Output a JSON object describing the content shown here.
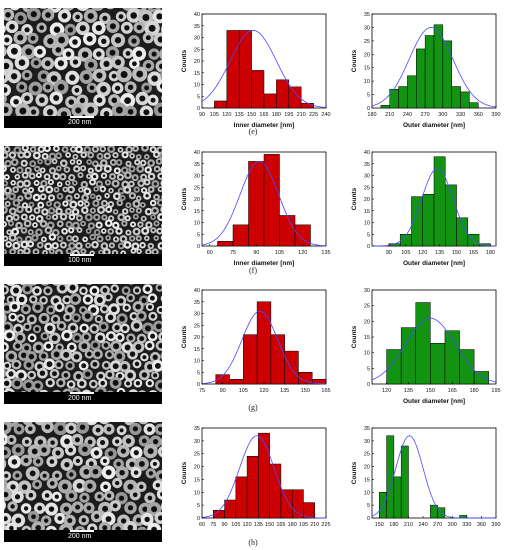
{
  "panels": [
    {
      "label": "(e)",
      "scale_text": "200 nm"
    },
    {
      "label": "(f)",
      "scale_text": "100 nm"
    },
    {
      "label": "(g)",
      "scale_text": "200 nm"
    },
    {
      "label": "(h)",
      "scale_text": "200 nm"
    }
  ],
  "colors": {
    "inner_bar": "#cc0000",
    "outer_bar": "#129312",
    "fit_curve": "#4b4bff",
    "sem_background": "#0e0e0e"
  },
  "chart_data": [
    {
      "type": "bar",
      "panel": "(e)",
      "xlabel": "Inner diameter [nm]",
      "ylabel": "Counts",
      "xlim": [
        90,
        240
      ],
      "ylim": [
        0,
        40
      ],
      "xticks": [
        90,
        105,
        120,
        135,
        150,
        165,
        180,
        195,
        210,
        225,
        240
      ],
      "yticks": [
        0,
        5,
        10,
        15,
        20,
        25,
        30,
        35,
        40
      ],
      "bin_edges": [
        105,
        120,
        135,
        150,
        165,
        180,
        195,
        210,
        225
      ],
      "values": [
        3,
        33,
        33,
        16,
        6,
        12,
        9,
        2
      ],
      "fit": {
        "mean": 152,
        "sd": 28,
        "peak": 33
      }
    },
    {
      "type": "bar",
      "panel": "(e)",
      "xlabel": "Outer diameter [nm]",
      "ylabel": "Counts",
      "xlim": [
        180,
        390
      ],
      "ylim": [
        0,
        35
      ],
      "xticks": [
        180,
        210,
        240,
        270,
        300,
        330,
        360,
        390
      ],
      "yticks": [
        0,
        5,
        10,
        15,
        20,
        25,
        30,
        35
      ],
      "bin_edges": [
        195,
        210,
        225,
        240,
        255,
        270,
        285,
        300,
        315,
        330,
        345,
        360
      ],
      "values": [
        1,
        7,
        8,
        12,
        22,
        27,
        31,
        25,
        8,
        6,
        2
      ],
      "fit": {
        "mean": 280,
        "sd": 37,
        "peak": 30
      }
    },
    {
      "type": "bar",
      "panel": "(f)",
      "xlabel": "Inner diameter [nm]",
      "ylabel": "Counts",
      "xlim": [
        55,
        135
      ],
      "ylim": [
        0,
        40
      ],
      "xticks": [
        60,
        75,
        90,
        105,
        120,
        135
      ],
      "yticks": [
        0,
        5,
        10,
        15,
        20,
        25,
        30,
        35,
        40
      ],
      "bin_edges": [
        65,
        75,
        85,
        95,
        105,
        115,
        125
      ],
      "values": [
        2,
        9,
        36,
        39,
        13,
        9
      ],
      "fit": {
        "mean": 92,
        "sd": 12.5,
        "peak": 36
      }
    },
    {
      "type": "bar",
      "panel": "(f)",
      "xlabel": "Outer diameter [nm]",
      "ylabel": "Counts",
      "xlim": [
        75,
        185
      ],
      "ylim": [
        0,
        40
      ],
      "xticks": [
        90,
        105,
        120,
        135,
        150,
        165,
        180
      ],
      "yticks": [
        0,
        5,
        10,
        15,
        20,
        25,
        30,
        35,
        40
      ],
      "bin_edges": [
        90,
        100,
        110,
        120,
        130,
        140,
        150,
        160,
        170,
        180
      ],
      "values": [
        1,
        5,
        21,
        22,
        38,
        26,
        12,
        5,
        1
      ],
      "fit": {
        "mean": 133,
        "sd": 14,
        "peak": 33
      }
    },
    {
      "type": "bar",
      "panel": "(g)",
      "xlabel": "",
      "ylabel": "Counts",
      "xlim": [
        75,
        165
      ],
      "ylim": [
        0,
        40
      ],
      "xticks": [
        75,
        90,
        105,
        120,
        135,
        150,
        165
      ],
      "yticks": [
        0,
        5,
        10,
        15,
        20,
        25,
        30,
        35,
        40
      ],
      "bin_edges": [
        85,
        95,
        105,
        115,
        125,
        135,
        145,
        155,
        165
      ],
      "values": [
        4,
        2,
        21,
        35,
        21,
        14,
        5,
        2
      ],
      "fit": {
        "mean": 117,
        "sd": 13,
        "peak": 31
      }
    },
    {
      "type": "bar",
      "panel": "(g)",
      "xlabel": "Outer diameter [nm]",
      "ylabel": "Counts",
      "xlim": [
        110,
        195
      ],
      "ylim": [
        0,
        30
      ],
      "xticks": [
        120,
        135,
        150,
        165,
        180,
        195
      ],
      "yticks": [
        0,
        5,
        10,
        15,
        20,
        25,
        30
      ],
      "bin_edges": [
        120,
        130,
        140,
        150,
        160,
        170,
        180,
        190
      ],
      "values": [
        11,
        18,
        26,
        13,
        17,
        11,
        4
      ],
      "fit": {
        "mean": 150,
        "sd": 17,
        "peak": 21
      }
    },
    {
      "type": "bar",
      "panel": "(h)",
      "xlabel": "",
      "ylabel": "Counts",
      "xlim": [
        60,
        225
      ],
      "ylim": [
        0,
        35
      ],
      "xticks": [
        60,
        75,
        90,
        105,
        120,
        135,
        150,
        165,
        180,
        195,
        210,
        225
      ],
      "yticks": [
        0,
        5,
        10,
        15,
        20,
        25,
        30,
        35
      ],
      "bin_edges": [
        75,
        90,
        105,
        120,
        135,
        150,
        165,
        180,
        195,
        210
      ],
      "values": [
        3,
        7,
        16,
        24,
        33,
        21,
        11,
        11,
        6
      ],
      "fit": {
        "mean": 133,
        "sd": 23,
        "peak": 32
      }
    },
    {
      "type": "bar",
      "panel": "(h)",
      "xlabel": "",
      "ylabel": "Counts",
      "xlim": [
        135,
        390
      ],
      "ylim": [
        0,
        35
      ],
      "xticks": [
        150,
        180,
        210,
        240,
        270,
        300,
        330,
        360,
        390
      ],
      "yticks": [
        0,
        5,
        10,
        15,
        20,
        25,
        30,
        35
      ],
      "bin_edges": [
        150,
        165,
        180,
        195,
        210,
        225,
        240,
        255,
        270,
        285,
        300,
        315,
        330,
        345,
        360
      ],
      "values": [
        10,
        32,
        16,
        28,
        0,
        0,
        0,
        5,
        4,
        0,
        0,
        1,
        0,
        0
      ],
      "fit": {
        "mean": 212,
        "sd": 28,
        "peak": 32
      }
    }
  ]
}
